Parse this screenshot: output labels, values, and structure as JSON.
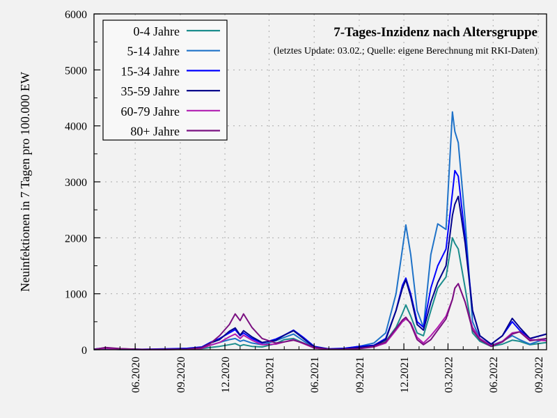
{
  "chart_data": {
    "type": "line",
    "title": "7-Tages-Inzidenz nach Altersgruppe",
    "subtitle": "(letztes Update: 03.02.; Quelle: eigene Berechnung mit RKI-Daten)",
    "xlabel": "",
    "ylabel": "Neuinfektionen in 7 Tagen pro 100.000 EW",
    "ylim": [
      0,
      6000
    ],
    "yticks": [
      "0",
      "1000",
      "2000",
      "3000",
      "4000",
      "5000",
      "6000"
    ],
    "xlim": [
      "2020-03-09",
      "2022-09-18"
    ],
    "xticks": [
      {
        "date": "2020-06-01",
        "label": "06.2020"
      },
      {
        "date": "2020-09-01",
        "label": "09.2020"
      },
      {
        "date": "2020-12-01",
        "label": "12.2020"
      },
      {
        "date": "2021-03-01",
        "label": "03.2021"
      },
      {
        "date": "2021-06-01",
        "label": "06.2021"
      },
      {
        "date": "2021-09-01",
        "label": "09.2021"
      },
      {
        "date": "2021-12-01",
        "label": "12.2021"
      },
      {
        "date": "2022-03-01",
        "label": "03.2022"
      },
      {
        "date": "2022-06-01",
        "label": "06.2022"
      },
      {
        "date": "2022-09-01",
        "label": "09.2022"
      }
    ],
    "grid": true,
    "legend_position": "top-left",
    "x": [
      "2020-03-09",
      "2020-04-01",
      "2020-05-01",
      "2020-06-15",
      "2020-08-01",
      "2020-09-15",
      "2020-10-15",
      "2020-11-01",
      "2020-11-20",
      "2020-12-10",
      "2020-12-22",
      "2021-01-01",
      "2021-01-08",
      "2021-01-25",
      "2021-02-15",
      "2021-03-15",
      "2021-04-01",
      "2021-04-20",
      "2021-05-10",
      "2021-06-01",
      "2021-07-01",
      "2021-08-01",
      "2021-09-01",
      "2021-10-01",
      "2021-10-25",
      "2021-11-15",
      "2021-11-28",
      "2021-12-05",
      "2021-12-15",
      "2021-12-28",
      "2022-01-10",
      "2022-01-25",
      "2022-02-08",
      "2022-02-25",
      "2022-03-10",
      "2022-03-15",
      "2022-03-22",
      "2022-04-05",
      "2022-04-20",
      "2022-05-05",
      "2022-05-28",
      "2022-06-20",
      "2022-07-10",
      "2022-07-25",
      "2022-08-15",
      "2022-09-18"
    ],
    "series": [
      {
        "name": "0-4 Jahre",
        "color": "#1a8c8c",
        "values": [
          5,
          10,
          5,
          5,
          8,
          12,
          20,
          40,
          60,
          90,
          110,
          70,
          90,
          60,
          50,
          110,
          180,
          200,
          120,
          30,
          10,
          15,
          40,
          60,
          150,
          400,
          650,
          800,
          600,
          300,
          250,
          700,
          1100,
          1300,
          2000,
          1900,
          1800,
          1100,
          300,
          150,
          60,
          100,
          170,
          150,
          90,
          130
        ]
      },
      {
        "name": "5-14 Jahre",
        "color": "#1e72c8",
        "values": [
          5,
          10,
          5,
          5,
          8,
          15,
          30,
          80,
          130,
          180,
          200,
          150,
          170,
          120,
          90,
          160,
          220,
          280,
          160,
          40,
          10,
          20,
          60,
          120,
          300,
          1000,
          1800,
          2230,
          1700,
          700,
          400,
          1700,
          2250,
          2150,
          4250,
          3900,
          3700,
          2300,
          500,
          200,
          80,
          150,
          250,
          180,
          100,
          200
        ]
      },
      {
        "name": "15-34 Jahre",
        "color": "#0000ff",
        "values": [
          10,
          30,
          15,
          8,
          15,
          25,
          50,
          130,
          200,
          300,
          360,
          250,
          300,
          200,
          120,
          190,
          260,
          350,
          220,
          60,
          15,
          25,
          60,
          80,
          200,
          700,
          1150,
          1280,
          1000,
          500,
          400,
          1100,
          1500,
          1800,
          2800,
          3200,
          3100,
          2000,
          700,
          250,
          100,
          250,
          500,
          350,
          200,
          280
        ]
      },
      {
        "name": "35-59 Jahre",
        "color": "#00008b",
        "values": [
          10,
          35,
          15,
          6,
          10,
          15,
          40,
          120,
          180,
          330,
          390,
          260,
          340,
          230,
          130,
          170,
          260,
          340,
          200,
          50,
          12,
          15,
          40,
          70,
          180,
          700,
          1100,
          1250,
          950,
          450,
          350,
          850,
          1200,
          1500,
          2400,
          2600,
          2740,
          1900,
          700,
          250,
          100,
          250,
          560,
          400,
          200,
          280
        ]
      },
      {
        "name": "60-79 Jahre",
        "color": "#b01cb0",
        "values": [
          5,
          25,
          10,
          4,
          5,
          8,
          25,
          80,
          130,
          230,
          280,
          200,
          260,
          170,
          90,
          100,
          140,
          180,
          110,
          30,
          6,
          8,
          20,
          50,
          120,
          350,
          500,
          550,
          480,
          220,
          120,
          250,
          400,
          600,
          900,
          1100,
          1180,
          850,
          400,
          200,
          70,
          150,
          300,
          320,
          180,
          160
        ]
      },
      {
        "name": "80+ Jahre",
        "color": "#7a1080",
        "values": [
          5,
          40,
          20,
          5,
          4,
          8,
          35,
          110,
          250,
          450,
          640,
          520,
          640,
          400,
          200,
          120,
          140,
          170,
          120,
          40,
          6,
          8,
          20,
          60,
          140,
          380,
          530,
          580,
          460,
          180,
          90,
          180,
          350,
          550,
          900,
          1100,
          1180,
          850,
          350,
          180,
          60,
          140,
          280,
          320,
          160,
          200
        ]
      }
    ]
  }
}
